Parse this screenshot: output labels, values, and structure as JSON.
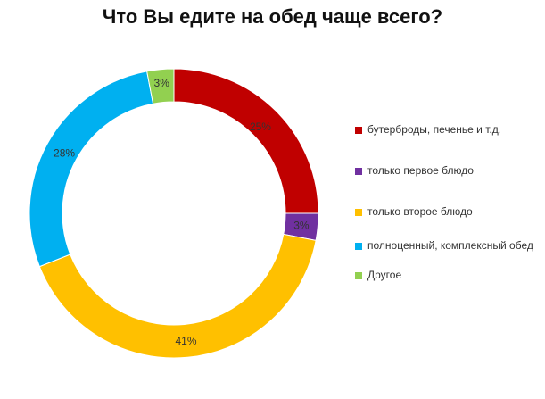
{
  "chart_data": {
    "type": "pie",
    "donut": true,
    "title": "Что Вы едите на обед чаще всего?",
    "legend_position": "right",
    "slices": [
      {
        "name": "бутерброды, печенье и т.д.",
        "value": 25,
        "label": "25%",
        "color": "#C00000"
      },
      {
        "name": "только первое блюдо",
        "value": 3,
        "label": "3%",
        "color": "#7030A0"
      },
      {
        "name": "только второе блюдо",
        "value": 41,
        "label": "41%",
        "color": "#FFC000"
      },
      {
        "name": "полноценный, комплексный обед",
        "value": 28,
        "label": "28%",
        "color": "#00B0F0"
      },
      {
        "name": "Другое",
        "value": 3,
        "label": "3%",
        "color": "#92D050"
      }
    ]
  }
}
